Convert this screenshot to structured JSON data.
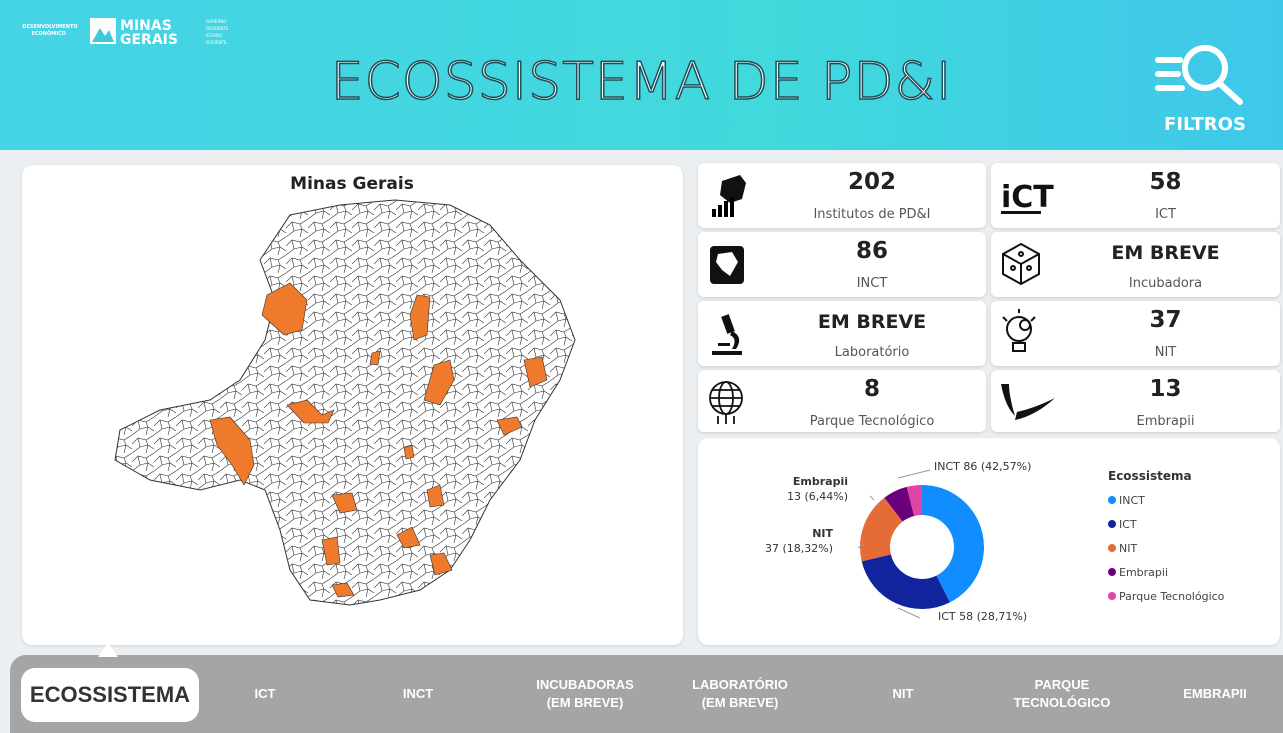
{
  "header": {
    "logo_left": [
      "DESENVOLVIMENTO",
      "ECONÔMICO"
    ],
    "logo_main": [
      "MINAS",
      "GERAIS"
    ],
    "logo_right": [
      "GOVERNO",
      "DIFERENTE.",
      "ESTADO",
      "EFICIENTE."
    ],
    "title": "ECOSSISTEMA DE PD&I",
    "filter_label": "FILTROS"
  },
  "map": {
    "title": "Minas Gerais"
  },
  "cards": [
    {
      "value": 202,
      "label": "Institutos de PD&I"
    },
    {
      "value": 58,
      "label": "ICT"
    },
    {
      "value": 86,
      "label": "INCT"
    },
    {
      "value": "EM BREVE",
      "label": "Incubadora"
    },
    {
      "value": "EM BREVE",
      "label": "Laboratório"
    },
    {
      "value": 37,
      "label": "NIT"
    },
    {
      "value": 8,
      "label": "Parque Tecnológico"
    },
    {
      "value": 13,
      "label": "Embrapii"
    }
  ],
  "chart_data": {
    "type": "pie",
    "donut": true,
    "legend_title": "Ecossistema",
    "categories": [
      "INCT",
      "ICT",
      "NIT",
      "Embrapii",
      "Parque Tecnológico"
    ],
    "values": [
      86,
      58,
      37,
      13,
      8
    ],
    "colors": [
      "#118dff",
      "#12239e",
      "#e66c37",
      "#6b007b",
      "#e044a7"
    ],
    "value_labels": [
      [
        "INCT 86 (42,57%)"
      ],
      [
        "ICT 58 (28,71%)"
      ],
      [
        "NIT",
        "37 (18,32%)"
      ],
      [
        "Embrapii",
        "13 (6,44%)"
      ],
      null
    ]
  },
  "nav": {
    "active": 0,
    "items": [
      [
        "ECOSSISTEMA"
      ],
      [
        "ICT"
      ],
      [
        "INCT"
      ],
      [
        "INCUBADORAS",
        "(EM BREVE)"
      ],
      [
        "LABORATÓRIO",
        "(EM BREVE)"
      ],
      [
        "NIT"
      ],
      [
        "PARQUE",
        "TECNOLÓGICO"
      ],
      [
        "EMBRAPII"
      ]
    ]
  }
}
